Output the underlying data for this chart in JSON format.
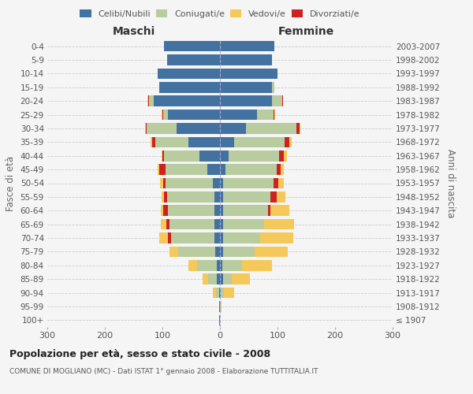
{
  "age_groups": [
    "100+",
    "95-99",
    "90-94",
    "85-89",
    "80-84",
    "75-79",
    "70-74",
    "65-69",
    "60-64",
    "55-59",
    "50-54",
    "45-49",
    "40-44",
    "35-39",
    "30-34",
    "25-29",
    "20-24",
    "15-19",
    "10-14",
    "5-9",
    "0-4"
  ],
  "birth_years": [
    "≤ 1907",
    "1908-1912",
    "1913-1917",
    "1918-1922",
    "1923-1927",
    "1928-1932",
    "1933-1937",
    "1938-1942",
    "1943-1947",
    "1948-1952",
    "1953-1957",
    "1958-1962",
    "1963-1967",
    "1968-1972",
    "1973-1977",
    "1978-1982",
    "1983-1987",
    "1988-1992",
    "1993-1997",
    "1998-2002",
    "2003-2007"
  ],
  "maschi": {
    "celibi": [
      1,
      1,
      2,
      5,
      5,
      8,
      10,
      10,
      10,
      10,
      12,
      22,
      35,
      55,
      75,
      90,
      115,
      105,
      108,
      92,
      97
    ],
    "coniugati": [
      0,
      1,
      5,
      15,
      35,
      65,
      75,
      78,
      80,
      82,
      82,
      72,
      62,
      58,
      52,
      8,
      8,
      0,
      0,
      0,
      0
    ],
    "vedovi": [
      0,
      0,
      5,
      10,
      15,
      15,
      15,
      10,
      5,
      5,
      5,
      2,
      2,
      2,
      1,
      1,
      1,
      0,
      0,
      0,
      0
    ],
    "divorziati": [
      0,
      0,
      0,
      0,
      0,
      0,
      5,
      5,
      8,
      5,
      5,
      12,
      3,
      5,
      2,
      2,
      2,
      0,
      0,
      0,
      0
    ]
  },
  "femmine": {
    "nubili": [
      0,
      0,
      2,
      5,
      4,
      5,
      5,
      5,
      5,
      5,
      5,
      10,
      15,
      25,
      45,
      65,
      90,
      90,
      100,
      90,
      95
    ],
    "coniugate": [
      0,
      1,
      5,
      15,
      35,
      55,
      65,
      72,
      78,
      82,
      88,
      88,
      88,
      88,
      88,
      28,
      18,
      5,
      0,
      0,
      0
    ],
    "vedove": [
      0,
      2,
      18,
      32,
      52,
      58,
      58,
      52,
      32,
      15,
      10,
      5,
      5,
      3,
      2,
      1,
      1,
      0,
      0,
      0,
      0
    ],
    "divorziate": [
      0,
      0,
      0,
      0,
      0,
      0,
      0,
      0,
      5,
      12,
      8,
      8,
      8,
      8,
      5,
      2,
      1,
      0,
      0,
      0,
      0
    ]
  },
  "colors": {
    "celibi": "#4472a0",
    "coniugati": "#b8cca0",
    "vedovi": "#f5c85a",
    "divorziati": "#cc2222"
  },
  "xlim": 300,
  "title": "Popolazione per età, sesso e stato civile - 2008",
  "subtitle": "COMUNE DI MOGLIANO (MC) - Dati ISTAT 1° gennaio 2008 - Elaborazione TUTTITALIA.IT",
  "ylabel_left": "Fasce di età",
  "ylabel_right": "Anni di nascita",
  "xlabel_left": "Maschi",
  "xlabel_right": "Femmine"
}
